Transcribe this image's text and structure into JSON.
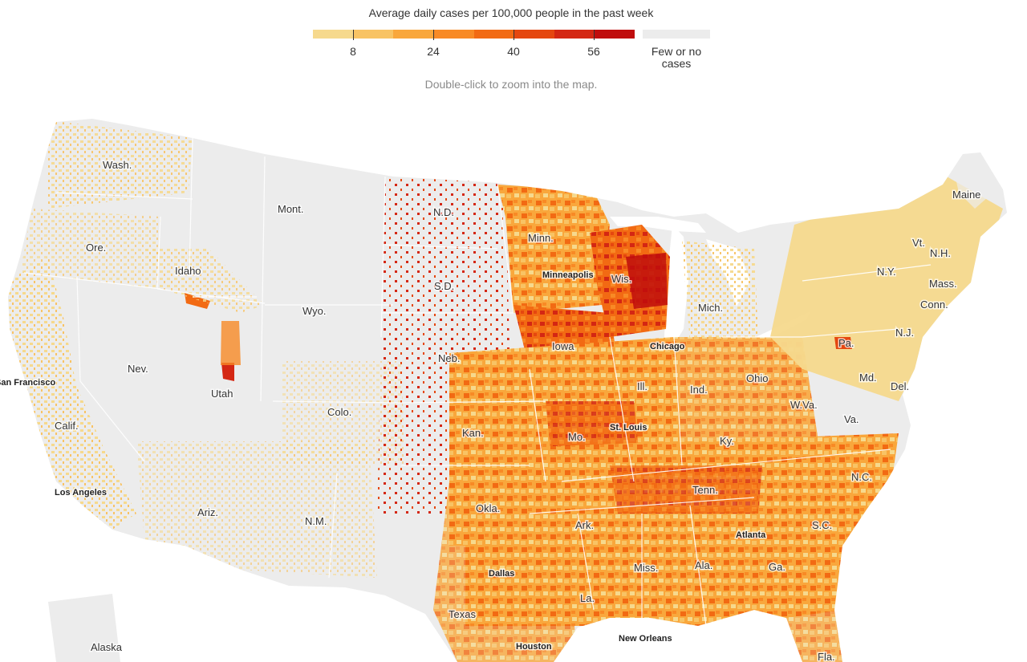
{
  "legend": {
    "title": "Average daily cases per 100,000 people in the past week",
    "colors": [
      "#f6d98d",
      "#f8c364",
      "#f9a73c",
      "#f88a25",
      "#f26a13",
      "#e5470f",
      "#d42713",
      "#c00d0d"
    ],
    "ticks": [
      "8",
      "24",
      "40",
      "56"
    ],
    "no_data_color": "#ececec",
    "no_data_label": "Few or no cases"
  },
  "hint": "Double-click to zoom into the map.",
  "map": {
    "background_land": "#ececec",
    "state_border": "#ffffff",
    "state_labels": [
      "Wash.",
      "Ore.",
      "Idaho",
      "Mont.",
      "Wyo.",
      "N.D.",
      "S.D.",
      "Neb.",
      "Minn.",
      "Wis.",
      "Iowa",
      "Mich.",
      "Ohio",
      "Ind.",
      "Ill.",
      "Mo.",
      "Kan.",
      "Colo.",
      "Utah",
      "Nev.",
      "Calif.",
      "Ariz.",
      "N.M.",
      "Okla.",
      "Texas",
      "Ark.",
      "La.",
      "Miss.",
      "Ala.",
      "Ga.",
      "Fla.",
      "S.C.",
      "N.C.",
      "Tenn.",
      "Ky.",
      "Va.",
      "W.Va.",
      "Md.",
      "Del.",
      "N.J.",
      "Pa.",
      "N.Y.",
      "Conn.",
      "Mass.",
      "Vt.",
      "N.H.",
      "Maine",
      "Alaska"
    ],
    "city_labels": [
      "San Francisco",
      "Los Angeles",
      "Minneapolis",
      "Chicago",
      "St. Louis",
      "Dallas",
      "Houston",
      "New Orleans",
      "Atlanta"
    ]
  }
}
